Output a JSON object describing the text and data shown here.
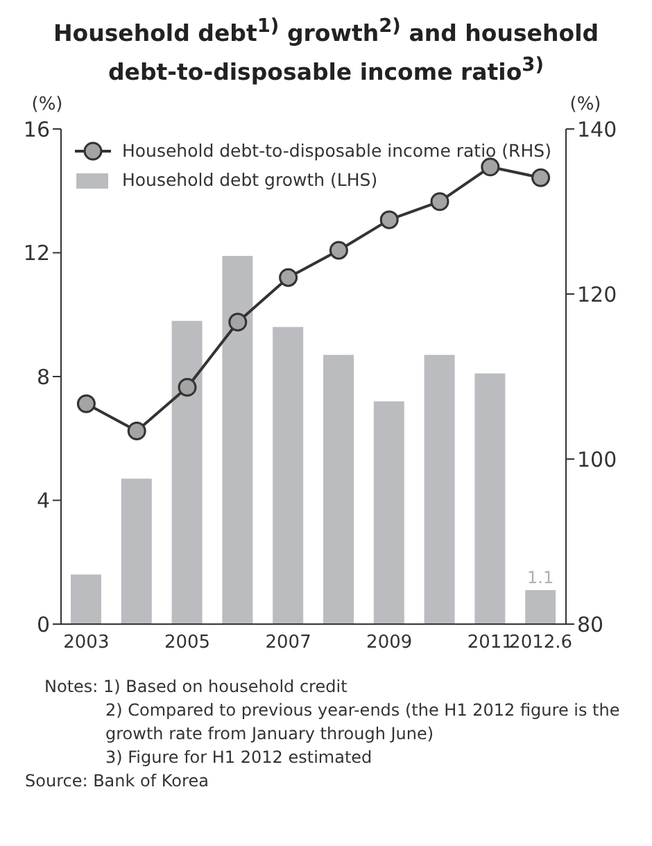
{
  "chart_data": {
    "type": "bar",
    "title": "Household debt$^{1)}$ growth$^{2)}$ and household debt-to-disposable income ratio$^{3)}$",
    "ylabel": "(%)",
    "y2label": "(%)",
    "categories": [
      "2003",
      null,
      "2005",
      null,
      "2007",
      null,
      "2009",
      null,
      "2011",
      "2012.6"
    ],
    "series": [
      {
        "name": "Household debt-to-disposable income ratio (RHS)",
        "type": "line",
        "axis": "y2",
        "color": "#333333",
        "marker": "circle",
        "values": [
          106.7,
          103.4,
          108.7,
          116.6,
          122.0,
          125.3,
          129.0,
          131.2,
          135.4,
          134.1
        ]
      },
      {
        "name": "Household debt growth (LHS)",
        "color": "#bbbcc0",
        "values": [
          1.6,
          4.7,
          9.8,
          11.9,
          9.6,
          8.7,
          7.2,
          8.7,
          8.1,
          1.1
        ],
        "value_labels": [
          null,
          null,
          null,
          null,
          null,
          null,
          null,
          null,
          null,
          "1.1"
        ]
      }
    ],
    "ylim": [
      0,
      16
    ],
    "yticks": [
      0,
      4,
      8,
      12,
      16
    ],
    "y2lim": [
      80,
      140
    ],
    "y2ticks": [
      80,
      100,
      120,
      140
    ],
    "legend": "top left",
    "annotations": [
      "Notes: 1) Based on household credit",
      "2) Compared to previous year-ends (the H1 2012 figure is the growth rate from January through June)",
      "3) Figure for H1 2012 estimated",
      "Source: Bank of Korea"
    ]
  }
}
